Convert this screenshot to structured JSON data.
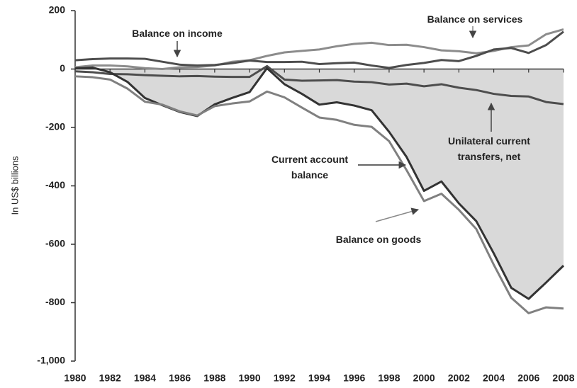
{
  "chart_data": {
    "type": "line",
    "y_label": "In US$ billions",
    "x": [
      1980,
      1981,
      1982,
      1983,
      1984,
      1985,
      1986,
      1987,
      1988,
      1989,
      1990,
      1991,
      1992,
      1993,
      1994,
      1995,
      1996,
      1997,
      1998,
      1999,
      2000,
      2001,
      2002,
      2003,
      2004,
      2005,
      2006,
      2007,
      2008
    ],
    "xlim": [
      1980,
      2008
    ],
    "xticks": [
      1980,
      1982,
      1984,
      1986,
      1988,
      1990,
      1992,
      1994,
      1996,
      1998,
      2000,
      2002,
      2004,
      2006,
      2008
    ],
    "ylim": [
      -1000,
      200
    ],
    "yticks": [
      {
        "value": -1000,
        "label": "-1,000"
      },
      -800,
      -600,
      -400,
      -200,
      0,
      200
    ],
    "area_series": 3,
    "area_color": "#d9d9d9",
    "series": [
      {
        "name": "Balance on services",
        "color": "#8c8c8c",
        "values": [
          6,
          12,
          12,
          9,
          3,
          0,
          6,
          7,
          12,
          25,
          30,
          45,
          57,
          62,
          67,
          78,
          86,
          90,
          82,
          83,
          75,
          64,
          61,
          54,
          62,
          75,
          81,
          119,
          136
        ]
      },
      {
        "name": "Balance on income",
        "color": "#4d4d4d",
        "values": [
          30,
          34,
          36,
          36,
          35,
          25,
          15,
          12,
          14,
          20,
          29,
          24,
          24,
          25,
          17,
          20,
          22,
          12,
          4,
          14,
          21,
          31,
          27,
          45,
          67,
          72,
          55,
          82,
          128
        ]
      },
      {
        "name": "Unilateral current transfers, net",
        "color": "#4d4d4d",
        "values": [
          -8,
          -11,
          -17,
          -18,
          -21,
          -23,
          -25,
          -24,
          -26,
          -27,
          -27,
          10,
          -36,
          -40,
          -39,
          -38,
          -43,
          -45,
          -53,
          -50,
          -59,
          -52,
          -64,
          -72,
          -85,
          -92,
          -94,
          -113,
          -120
        ]
      },
      {
        "name": "Current account balance",
        "color": "#333333",
        "values": [
          2,
          5,
          -11,
          -44,
          -99,
          -124,
          -147,
          -161,
          -121,
          -99,
          -79,
          3,
          -52,
          -85,
          -122,
          -114,
          -125,
          -141,
          -215,
          -301,
          -417,
          -385,
          -460,
          -521,
          -631,
          -749,
          -787,
          -731,
          -673
        ]
      },
      {
        "name": "Balance on goods",
        "color": "#808080",
        "values": [
          -25,
          -28,
          -36,
          -67,
          -112,
          -122,
          -145,
          -159,
          -127,
          -118,
          -111,
          -77,
          -97,
          -132,
          -166,
          -174,
          -191,
          -198,
          -247,
          -346,
          -452,
          -427,
          -482,
          -548,
          -670,
          -783,
          -836,
          -816,
          -820
        ]
      }
    ]
  }
}
